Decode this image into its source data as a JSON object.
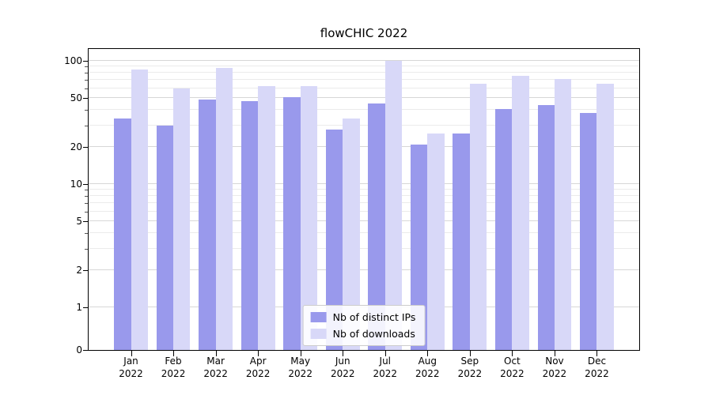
{
  "title": "flowCHIC 2022",
  "chart_data": {
    "type": "bar",
    "title": "flowCHIC 2022",
    "categories": [
      "Jan",
      "Feb",
      "Mar",
      "Apr",
      "May",
      "Jun",
      "Jul",
      "Aug",
      "Sep",
      "Oct",
      "Nov",
      "Dec"
    ],
    "year_label": "2022",
    "series": [
      {
        "name": "Nb of distinct IPs",
        "color": "#9999ec",
        "values": [
          34,
          30,
          49,
          47,
          51,
          28,
          45,
          21,
          26,
          41,
          44,
          38
        ]
      },
      {
        "name": "Nb of downloads",
        "color": "#d8d8f8",
        "values": [
          85,
          60,
          88,
          63,
          63,
          34,
          100,
          26,
          65,
          76,
          72,
          65
        ]
      }
    ],
    "yscale": "symlog",
    "yticks": [
      0,
      1,
      2,
      5,
      10,
      20,
      50,
      100
    ],
    "minor_gridlines": [
      3,
      4,
      6,
      7,
      8,
      9,
      30,
      40,
      60,
      70,
      80,
      90
    ],
    "ylim": [
      0,
      125
    ],
    "grid": true,
    "legend_position": "lower center",
    "colors": {
      "grid_major": "#d7d7d7",
      "grid_minor": "#ebebeb",
      "axis": "#000000",
      "text": "#000000",
      "background": "#ffffff"
    }
  }
}
